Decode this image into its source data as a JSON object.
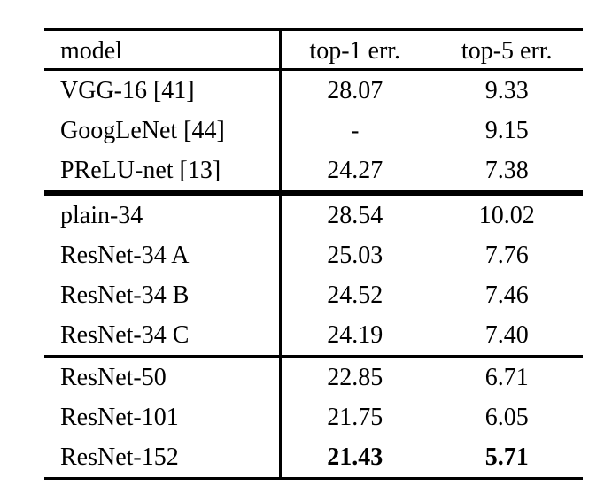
{
  "table": {
    "columns": [
      {
        "key": "model",
        "label": "model"
      },
      {
        "key": "top1",
        "label": "top-1 err."
      },
      {
        "key": "top5",
        "label": "top-5 err."
      }
    ],
    "sections": [
      {
        "rows": [
          {
            "model": "VGG-16 [41]",
            "top1": "28.07",
            "top5": "9.33",
            "bold": false
          },
          {
            "model": "GoogLeNet [44]",
            "top1": "-",
            "top5": "9.15",
            "bold": false
          },
          {
            "model": "PReLU-net [13]",
            "top1": "24.27",
            "top5": "7.38",
            "bold": false
          }
        ]
      },
      {
        "rows": [
          {
            "model": "plain-34",
            "top1": "28.54",
            "top5": "10.02",
            "bold": false
          },
          {
            "model": "ResNet-34 A",
            "top1": "25.03",
            "top5": "7.76",
            "bold": false
          },
          {
            "model": "ResNet-34 B",
            "top1": "24.52",
            "top5": "7.46",
            "bold": false
          },
          {
            "model": "ResNet-34 C",
            "top1": "24.19",
            "top5": "7.40",
            "bold": false
          }
        ]
      },
      {
        "rows": [
          {
            "model": "ResNet-50",
            "top1": "22.85",
            "top5": "6.71",
            "bold": false
          },
          {
            "model": "ResNet-101",
            "top1": "21.75",
            "top5": "6.05",
            "bold": false
          },
          {
            "model": "ResNet-152",
            "top1": "21.43",
            "top5": "5.71",
            "bold": true
          }
        ]
      }
    ]
  },
  "colors": {
    "text": "#000000",
    "rule": "#000000",
    "background": "#ffffff"
  }
}
